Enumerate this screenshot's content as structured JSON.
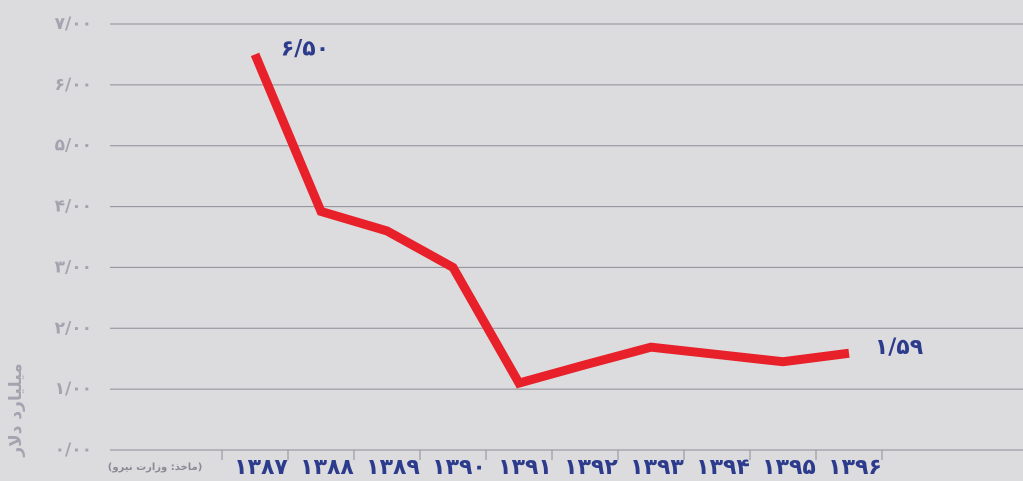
{
  "chart_data": {
    "type": "line",
    "y_label": "میلیارد دلار",
    "source": "(ماخذ: وزارت نیرو)",
    "categories": [
      "۱۳۸۷",
      "۱۳۸۸",
      "۱۳۸۹",
      "۱۳۹۰",
      "۱۳۹۱",
      "۱۳۹۲",
      "۱۳۹۳",
      "۱۳۹۴",
      "۱۳۹۵",
      "۱۳۹۶"
    ],
    "series": [
      {
        "color": "#e8202a",
        "values": [
          6.5,
          3.92,
          3.6,
          3.0,
          1.1,
          1.4,
          1.69,
          1.57,
          1.45,
          1.59
        ],
        "value_labels": [
          "۶/۵۰",
          null,
          null,
          null,
          null,
          null,
          null,
          null,
          null,
          "۱/۵۹"
        ]
      }
    ],
    "ylim": [
      0,
      7
    ],
    "yticks": [
      {
        "value": 0,
        "label": "۰/۰۰"
      },
      {
        "value": 1,
        "label": "۱/۰۰"
      },
      {
        "value": 2,
        "label": "۲/۰۰"
      },
      {
        "value": 3,
        "label": "۳/۰۰"
      },
      {
        "value": 4,
        "label": "۴/۰۰"
      },
      {
        "value": 5,
        "label": "۵/۰۰"
      },
      {
        "value": 6,
        "label": "۶/۰۰"
      },
      {
        "value": 7,
        "label": "۷/۰۰"
      }
    ],
    "grid": true
  }
}
